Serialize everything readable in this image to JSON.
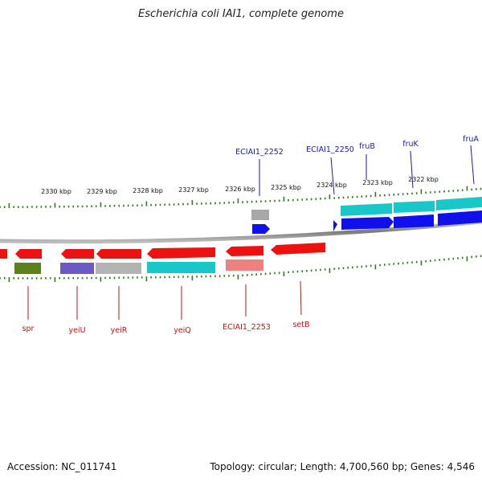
{
  "title": "Escherichia coli IAI1, complete genome",
  "footer": {
    "accession": "Accession: NC_011741",
    "summary": "Topology: circular; Length: 4,700,560 bp; Genes: 4,546"
  },
  "colors": {
    "forward_label": "#1a1aaa",
    "reverse_label": "#cc1111",
    "tick": "#2f7a1e",
    "backbone": "#888888"
  },
  "kbp_ticks": [
    "2330 kbp",
    "2329 kbp",
    "2328 kbp",
    "2327 kbp",
    "2326 kbp",
    "2325 kbp",
    "2324 kbp",
    "2323 kbp",
    "2322 kbp"
  ],
  "forward_labels": [
    "ECIAI1_2252",
    "ECIAI1_2250",
    "fruB",
    "fruK",
    "fruA"
  ],
  "reverse_labels": [
    "spr",
    "yeiU",
    "yeiR",
    "yeiQ",
    "ECIAI1_2253",
    "setB"
  ]
}
